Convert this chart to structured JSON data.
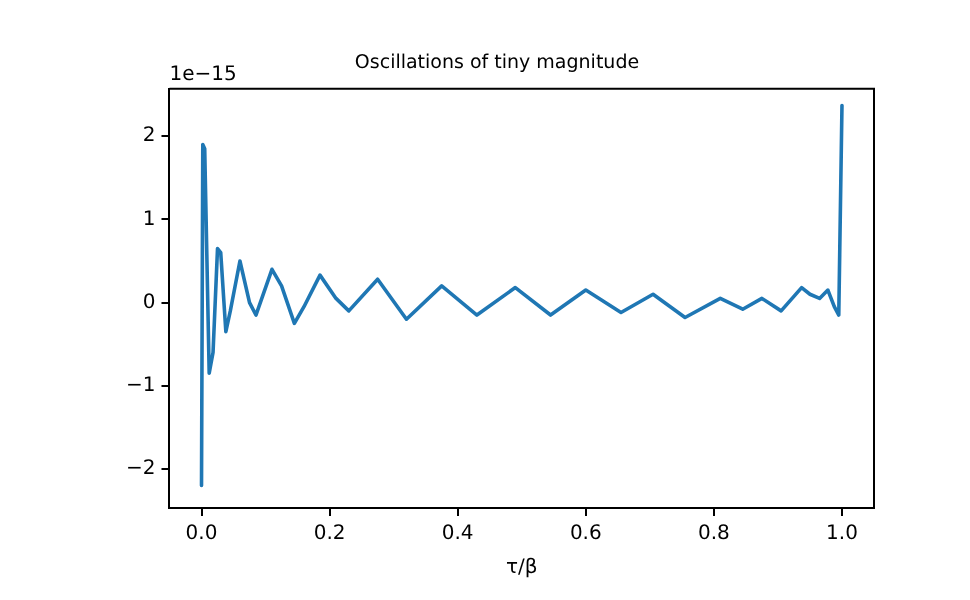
{
  "chart_data": {
    "type": "line",
    "title": "Oscillations of tiny magnitude",
    "xlabel": "τ/β",
    "annotations": [
      "1e−15"
    ],
    "x": [
      0,
      0.002,
      0.005,
      0.012,
      0.018,
      0.025,
      0.03,
      0.038,
      0.045,
      0.06,
      0.075,
      0.085,
      0.11,
      0.125,
      0.145,
      0.16,
      0.185,
      0.21,
      0.23,
      0.275,
      0.32,
      0.375,
      0.43,
      0.49,
      0.545,
      0.6,
      0.655,
      0.705,
      0.755,
      0.81,
      0.845,
      0.875,
      0.905,
      0.937,
      0.95,
      0.965,
      0.978,
      0.988,
      0.995,
      1.0
    ],
    "series": [
      {
        "color": "#1f77b4",
        "values": [
          -2.2,
          1.9,
          1.85,
          -0.85,
          -0.6,
          0.65,
          0.6,
          -0.35,
          -0.1,
          0.5,
          0.0,
          -0.15,
          0.4,
          0.2,
          -0.25,
          -0.05,
          0.33,
          0.05,
          -0.1,
          0.28,
          -0.2,
          0.2,
          -0.15,
          0.18,
          -0.15,
          0.15,
          -0.12,
          0.1,
          -0.18,
          0.05,
          -0.08,
          0.05,
          -0.1,
          0.18,
          0.1,
          0.05,
          0.15,
          -0.05,
          -0.15,
          2.37
        ]
      }
    ],
    "xlim": [
      -0.05,
      1.05
    ],
    "xticks": [
      {
        "value": 0,
        "label": "0.0"
      },
      0.2,
      0.4,
      0.6,
      0.8,
      {
        "value": 1,
        "label": "1.0"
      }
    ],
    "ylim": [
      -2.47,
      2.57
    ],
    "yticks": [
      -2,
      -1,
      0,
      1,
      2
    ],
    "grid": false,
    "legend": false,
    "marker": "none",
    "line_style": "solid"
  }
}
